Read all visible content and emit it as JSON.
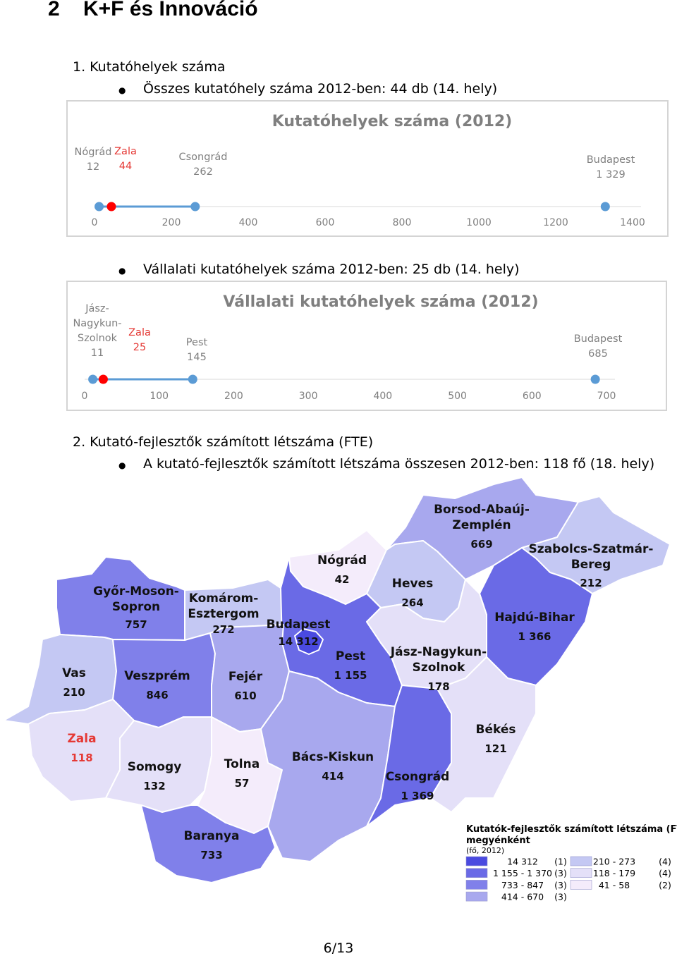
{
  "heading": {
    "number": "2",
    "title": "K+F és Innováció"
  },
  "section1": {
    "title": "1.  Kutatóhelyek száma",
    "bullet1": "Összes kutatóhely száma 2012-ben: 44 db (14. hely)",
    "bullet2": "Vállalati kutatóhelyek száma 2012-ben: 25 db (14. hely)"
  },
  "section2": {
    "title": "2.  Kutató-fejlesztők számított létszáma (FTE)",
    "bullet1": "A kutató-fejlesztők számított létszáma összesen 2012-ben: 118 fő (18. hely)"
  },
  "chart_data": [
    {
      "type": "scatter",
      "title": "Kutatóhelyek száma (2012)",
      "xlim": [
        0,
        1400
      ],
      "ticks": [
        0,
        200,
        400,
        600,
        800,
        1000,
        1200,
        1400
      ],
      "range_segment": [
        12,
        262
      ],
      "points": [
        {
          "name": "Nógrád",
          "value": 12,
          "value_label": "12",
          "highlight": false
        },
        {
          "name": "Zala",
          "value": 44,
          "value_label": "44",
          "highlight": true
        },
        {
          "name": "Csongrád",
          "value": 262,
          "value_label": "262",
          "highlight": false
        },
        {
          "name": "Budapest",
          "value": 1329,
          "value_label": "1 329",
          "highlight": false
        }
      ],
      "colors": {
        "point": "#5b9bd5",
        "highlight": "#ff0000",
        "text": "#7f7f7f",
        "highlight_text": "#e53935"
      }
    },
    {
      "type": "scatter",
      "title": "Vállalati kutatóhelyek száma (2012)",
      "xlim": [
        0,
        700
      ],
      "ticks": [
        0,
        100,
        200,
        300,
        400,
        500,
        600,
        700
      ],
      "range_segment": [
        11,
        145
      ],
      "points": [
        {
          "name": "Jász-Nagykun-Szolnok",
          "name_lines": [
            "Jász-",
            "Nagykun-",
            "Szolnok"
          ],
          "value": 11,
          "value_label": "11",
          "highlight": false
        },
        {
          "name": "Zala",
          "value": 25,
          "value_label": "25",
          "highlight": true
        },
        {
          "name": "Pest",
          "value": 145,
          "value_label": "145",
          "highlight": false
        },
        {
          "name": "Budapest",
          "value": 685,
          "value_label": "685",
          "highlight": false
        }
      ],
      "colors": {
        "point": "#5b9bd5",
        "highlight": "#ff0000",
        "text": "#7f7f7f",
        "highlight_text": "#e53935"
      }
    }
  ],
  "map": {
    "counties": [
      {
        "id": "gyor",
        "lines": [
          "Győr-Moson-",
          "Sopron"
        ],
        "value": "757",
        "color": "#8080ea"
      },
      {
        "id": "komarom",
        "lines": [
          "Komárom-",
          "Esztergom"
        ],
        "value": "272",
        "color": "#c4c8f3"
      },
      {
        "id": "nograd",
        "lines": [
          "Nógrád"
        ],
        "value": "42",
        "color": "#f4ecfb"
      },
      {
        "id": "borsod",
        "lines": [
          "Borsod-Abaúj-",
          "Zemplén"
        ],
        "value": "669",
        "color": "#a8a8ee"
      },
      {
        "id": "szabolcs",
        "lines": [
          "Szabolcs-Szatmár-",
          "Bereg"
        ],
        "value": "212",
        "color": "#c4c8f3"
      },
      {
        "id": "heves",
        "lines": [
          "Heves"
        ],
        "value": "264",
        "color": "#c4c8f3"
      },
      {
        "id": "budapest",
        "lines": [
          "Budapest"
        ],
        "value": "14 312",
        "color": "#4a4ae0"
      },
      {
        "id": "pest",
        "lines": [
          "Pest"
        ],
        "value": "1 155",
        "color": "#6a6ae6"
      },
      {
        "id": "hajdu",
        "lines": [
          "Hajdú-Bihar"
        ],
        "value": "1 366",
        "color": "#6a6ae6"
      },
      {
        "id": "vas",
        "lines": [
          "Vas"
        ],
        "value": "210",
        "color": "#c4c8f3"
      },
      {
        "id": "veszprem",
        "lines": [
          "Veszprém"
        ],
        "value": "846",
        "color": "#8080ea"
      },
      {
        "id": "fejer",
        "lines": [
          "Fejér"
        ],
        "value": "610",
        "color": "#a8a8ee"
      },
      {
        "id": "jasz",
        "lines": [
          "Jász-Nagykun-",
          "Szolnok"
        ],
        "value": "178",
        "color": "#e4e0f8"
      },
      {
        "id": "zala",
        "lines": [
          "Zala"
        ],
        "value": "118",
        "color": "#e4e0f8",
        "highlight": true
      },
      {
        "id": "somogy",
        "lines": [
          "Somogy"
        ],
        "value": "132",
        "color": "#e4e0f8"
      },
      {
        "id": "tolna",
        "lines": [
          "Tolna"
        ],
        "value": "57",
        "color": "#f4ecfb"
      },
      {
        "id": "bacs",
        "lines": [
          "Bács-Kiskun"
        ],
        "value": "414",
        "color": "#a8a8ee"
      },
      {
        "id": "csongrad",
        "lines": [
          "Csongrád"
        ],
        "value": "1 369",
        "color": "#6a6ae6"
      },
      {
        "id": "bekes",
        "lines": [
          "Békés"
        ],
        "value": "121",
        "color": "#e4e0f8"
      },
      {
        "id": "baranya",
        "lines": [
          "Baranya"
        ],
        "value": "733",
        "color": "#8080ea"
      }
    ],
    "legend": {
      "title1": "Kutatók-fejlesztők számított létszáma (FTE)",
      "title2": "megyénként",
      "subtitle": "(fő, 2012)",
      "left": [
        {
          "range": "14 312",
          "count": "(1)",
          "color": "#4a4ae0"
        },
        {
          "range": "1 155 - 1 370",
          "count": "(3)",
          "color": "#6a6ae6"
        },
        {
          "range": "733 -   847",
          "count": "(3)",
          "color": "#8080ea"
        },
        {
          "range": "414 -   670",
          "count": "(3)",
          "color": "#a8a8ee"
        }
      ],
      "right": [
        {
          "range": "210 - 273",
          "count": "(4)",
          "color": "#c4c8f3"
        },
        {
          "range": "118 - 179",
          "count": "(4)",
          "color": "#e4e0f8"
        },
        {
          "range": "41 -  58",
          "count": "(2)",
          "color": "#f4ecfb"
        }
      ]
    }
  },
  "footer": {
    "page": "6/13"
  }
}
